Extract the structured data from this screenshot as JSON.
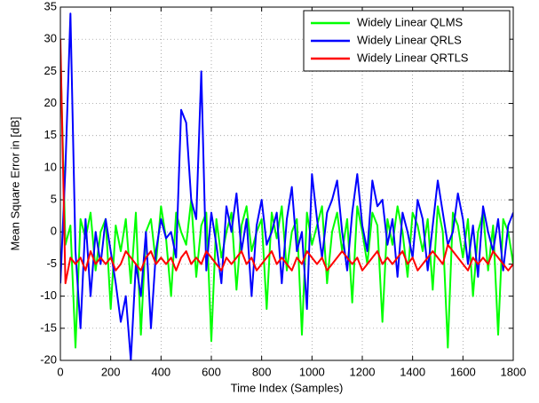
{
  "chart_data": {
    "type": "line",
    "xlabel": "Time Index (Samples)",
    "ylabel": "Mean Square Error in [dB]",
    "x": [
      0,
      20,
      40,
      60,
      80,
      100,
      120,
      140,
      160,
      180,
      200,
      220,
      240,
      260,
      280,
      300,
      320,
      340,
      360,
      380,
      400,
      420,
      440,
      460,
      480,
      500,
      520,
      540,
      560,
      580,
      600,
      620,
      640,
      660,
      680,
      700,
      720,
      740,
      760,
      780,
      800,
      820,
      840,
      860,
      880,
      900,
      920,
      940,
      960,
      980,
      1000,
      1020,
      1040,
      1060,
      1080,
      1100,
      1120,
      1140,
      1160,
      1180,
      1200,
      1220,
      1240,
      1260,
      1280,
      1300,
      1320,
      1340,
      1360,
      1380,
      1400,
      1420,
      1440,
      1460,
      1480,
      1500,
      1520,
      1540,
      1560,
      1580,
      1600,
      1620,
      1640,
      1660,
      1680,
      1700,
      1720,
      1740,
      1760,
      1780,
      1800
    ],
    "series": [
      {
        "name": "Widely Linear QLMS",
        "color": "#00ff00",
        "values": [
          28,
          -2,
          1,
          -18,
          2,
          -1,
          3,
          -6,
          0,
          2,
          -12,
          1,
          -3,
          2,
          -8,
          3,
          -16,
          0,
          2,
          -5,
          4,
          -1,
          -10,
          3,
          0,
          -2,
          5,
          -7,
          1,
          3,
          -17,
          2,
          -4,
          0,
          3,
          -9,
          1,
          4,
          -3,
          0,
          2,
          -12,
          3,
          -1,
          4,
          -6,
          0,
          2,
          -16,
          3,
          -2,
          1,
          4,
          -8,
          0,
          3,
          -3,
          2,
          -11,
          4,
          0,
          -5,
          3,
          1,
          -14,
          2,
          -2,
          4,
          0,
          -7,
          3,
          1,
          -3,
          2,
          -9,
          4,
          0,
          -18,
          3,
          1,
          -4,
          2,
          -10,
          0,
          3,
          -6,
          1,
          -16,
          2,
          0,
          -5
        ]
      },
      {
        "name": "Widely Linear QRLS",
        "color": "#0000ff",
        "values": [
          -8,
          10,
          34,
          -3,
          -15,
          2,
          -10,
          0,
          -5,
          2,
          -3,
          -8,
          -14,
          -10,
          -20,
          -5,
          -10,
          0,
          -15,
          -3,
          2,
          -1,
          0,
          -4,
          19,
          17,
          5,
          2,
          25,
          -6,
          3,
          -2,
          -8,
          4,
          0,
          6,
          -3,
          2,
          -10,
          1,
          5,
          -2,
          0,
          3,
          -8,
          2,
          7,
          -3,
          0,
          -12,
          9,
          2,
          -4,
          3,
          5,
          8,
          0,
          -6,
          3,
          9,
          1,
          -3,
          8,
          4,
          5,
          -2,
          2,
          -7,
          3,
          0,
          -4,
          5,
          2,
          -6,
          1,
          8,
          3,
          -2,
          0,
          6,
          2,
          -5,
          1,
          -7,
          4,
          0,
          -3,
          2,
          -6,
          1,
          3
        ]
      },
      {
        "name": "Widely Linear QRTLS",
        "color": "#ff0000",
        "values": [
          30,
          -8,
          -4,
          -5,
          -4,
          -6,
          -3,
          -5,
          -4,
          -5,
          -4,
          -6,
          -5,
          -3,
          -4,
          -5,
          -6,
          -4,
          -3,
          -5,
          -4,
          -5,
          -4,
          -6,
          -4,
          -3,
          -5,
          -4,
          -5,
          -3,
          -4,
          -5,
          -6,
          -4,
          -5,
          -4,
          -3,
          -5,
          -4,
          -6,
          -5,
          -4,
          -3,
          -5,
          -4,
          -5,
          -6,
          -4,
          -5,
          -3,
          -4,
          -5,
          -4,
          -6,
          -5,
          -4,
          -3,
          -4,
          -5,
          -4,
          -6,
          -5,
          -4,
          -3,
          -5,
          -4,
          -5,
          -4,
          -3,
          -5,
          -4,
          -6,
          -5,
          -4,
          -3,
          -4,
          -5,
          -2,
          -3,
          -4,
          -5,
          -6,
          -4,
          -5,
          -4,
          -5,
          -3,
          -4,
          -5,
          -6,
          -5
        ]
      }
    ],
    "xlim": [
      0,
      1800
    ],
    "xticks": [
      0,
      200,
      400,
      600,
      800,
      1000,
      1200,
      1400,
      1600,
      1800
    ],
    "ylim": [
      -20,
      35
    ],
    "yticks": [
      -20,
      -15,
      -10,
      -5,
      0,
      5,
      10,
      15,
      20,
      25,
      30,
      35
    ],
    "grid": true,
    "legend": "upper right"
  }
}
